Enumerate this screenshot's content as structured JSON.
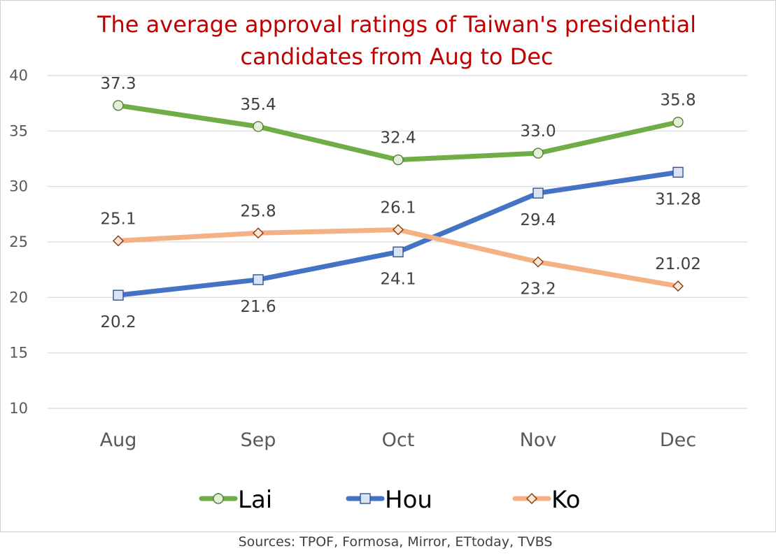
{
  "chart_data": {
    "type": "line",
    "title_lines": [
      "The average approval ratings of Taiwan's presidential",
      "candidates from Aug to Dec"
    ],
    "categories": [
      "Aug",
      "Sep",
      "Oct",
      "Nov",
      "Dec"
    ],
    "ylim": [
      10,
      40
    ],
    "yticks": [
      10,
      15,
      20,
      25,
      30,
      35,
      40
    ],
    "grid": true,
    "legend_position": "bottom",
    "series": [
      {
        "name": "Lai",
        "values": [
          37.3,
          35.4,
          32.4,
          33.0,
          35.8
        ],
        "labels": [
          "37.3",
          "35.4",
          "32.4",
          "33.0",
          "35.8"
        ],
        "label_side": [
          "above",
          "above",
          "above",
          "above",
          "above"
        ],
        "color": "#70ad47",
        "marker": "circle",
        "marker_fill": "#e2f0d9",
        "marker_stroke": "#507e32"
      },
      {
        "name": "Hou",
        "values": [
          20.2,
          21.6,
          24.1,
          29.4,
          31.28
        ],
        "labels": [
          "20.2",
          "21.6",
          "24.1",
          "29.4",
          "31.28"
        ],
        "label_side": [
          "below",
          "below",
          "below",
          "below",
          "below"
        ],
        "color": "#4472c4",
        "marker": "square",
        "marker_fill": "#dae3f3",
        "marker_stroke": "#2f5597"
      },
      {
        "name": "Ko",
        "values": [
          25.1,
          25.8,
          26.1,
          23.2,
          21.02
        ],
        "labels": [
          "25.1",
          "25.8",
          "26.1",
          "23.2",
          "21.02"
        ],
        "label_side": [
          "above",
          "above",
          "above",
          "below",
          "above"
        ],
        "color": "#f4b183",
        "marker": "diamond",
        "marker_fill": "#fbe5d6",
        "marker_stroke": "#843c0c"
      }
    ],
    "source": "Sources: TPOF, Formosa, Mirror, ETtoday, TVBS"
  }
}
